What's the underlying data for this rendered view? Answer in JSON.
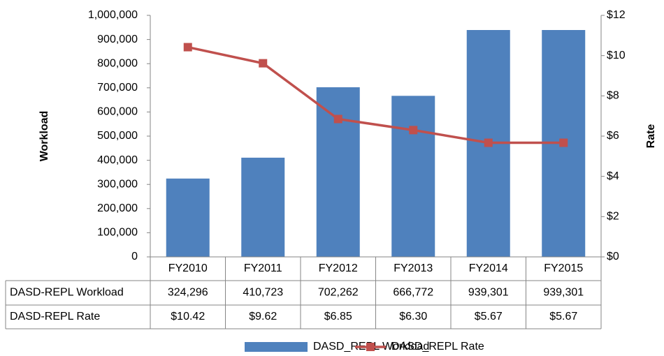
{
  "chart_data": {
    "type": "bar_line_table",
    "y_label": "Workload",
    "y2_label": "Rate",
    "categories": [
      "FY2010",
      "FY2011",
      "FY2012",
      "FY2013",
      "FY2014",
      "FY2015"
    ],
    "series": [
      {
        "name": "DASD_REPL Workload",
        "type": "bar",
        "color": "#4f81bd",
        "values": [
          324296,
          410723,
          702262,
          666772,
          939301,
          939301
        ],
        "value_labels": [
          "324,296",
          "410,723",
          "702,262",
          "666,772",
          "939,301",
          "939,301"
        ]
      },
      {
        "name": "DASD_REPL Rate",
        "type": "line",
        "axis": "y2",
        "color": "#c0504d",
        "values": [
          10.42,
          9.62,
          6.85,
          6.3,
          5.67,
          5.67
        ],
        "value_labels": [
          "$10.42",
          "$9.62",
          "$6.85",
          "$6.30",
          "$5.67",
          "$5.67"
        ]
      }
    ],
    "table_row_labels": [
      "DASD-REPL Workload",
      "DASD-REPL Rate"
    ],
    "ylim": [
      0,
      1000000
    ],
    "yticks": [
      0,
      {
        "value": 100000,
        "label": "100,000"
      },
      {
        "value": 200000,
        "label": "200,000"
      },
      {
        "value": 300000,
        "label": "300,000"
      },
      {
        "value": 400000,
        "label": "400,000"
      },
      {
        "value": 500000,
        "label": "500,000"
      },
      {
        "value": 600000,
        "label": "600,000"
      },
      {
        "value": 700000,
        "label": "700,000"
      },
      {
        "value": 800000,
        "label": "800,000"
      },
      {
        "value": 900000,
        "label": "900,000"
      },
      {
        "value": 1000000,
        "label": "1,000,000"
      }
    ],
    "y2lim": [
      0,
      12
    ],
    "y2ticks": [
      {
        "value": 0,
        "label": "$0"
      },
      {
        "value": 2,
        "label": "$2"
      },
      {
        "value": 4,
        "label": "$4"
      },
      {
        "value": 6,
        "label": "$6"
      },
      {
        "value": 8,
        "label": "$8"
      },
      {
        "value": 10,
        "label": "$10"
      },
      {
        "value": 12,
        "label": "$12"
      }
    ],
    "legend": "bottom",
    "grid": false
  }
}
